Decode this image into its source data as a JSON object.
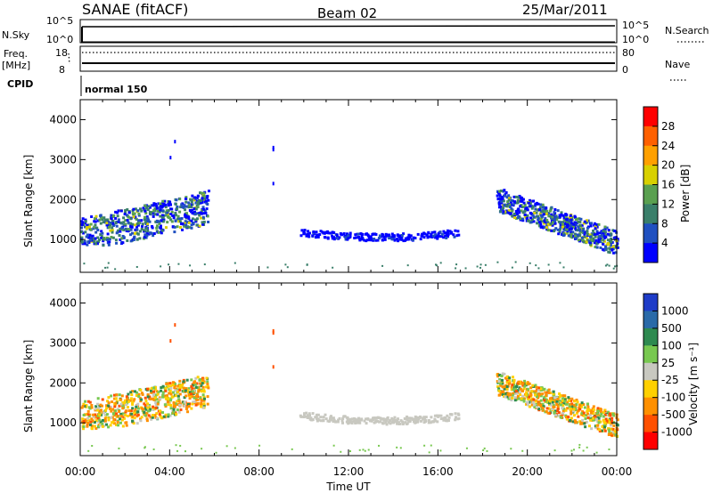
{
  "header": {
    "station": "SANAE (fitACF)",
    "beam": "Beam 02",
    "date": "25/Mar/2011"
  },
  "strip_panels": {
    "nsky_label": "N.Sky",
    "nsky_ticks": [
      "10^5",
      "10^0"
    ],
    "nsearch_label": "N.Search",
    "nsearch_ticks": [
      "10^5",
      "10^0"
    ],
    "freq_label_line1": "Freq.",
    "freq_label_line2": "[MHz]",
    "freq_ticks": [
      "18",
      "8"
    ],
    "nave_label": "Nave",
    "nave_ticks": [
      "80",
      "0"
    ],
    "cpid_label": "CPID",
    "cpid_value": "normal 150"
  },
  "x_axis": {
    "label": "Time UT",
    "ticks": [
      "00:00",
      "04:00",
      "08:00",
      "12:00",
      "16:00",
      "20:00",
      "00:00"
    ],
    "range_hours": [
      0,
      24
    ]
  },
  "colors": {
    "power_scale": [
      "#0000ff",
      "#2050c0",
      "#3a7f6a",
      "#5aa050",
      "#d8d000",
      "#ffa000",
      "#ff6000",
      "#ff0000"
    ],
    "velocity_scale": [
      "#1e3cc8",
      "#2a6aa8",
      "#2e8a50",
      "#78c850",
      "#c8c8c0",
      "#ffd000",
      "#ff9000",
      "#ff5000",
      "#ff0000"
    ]
  },
  "chart_data": [
    {
      "type": "heatmap",
      "name": "power",
      "xlabel": "",
      "ylabel": "Slant Range [km]",
      "xlim": [
        0,
        24
      ],
      "ylim": [
        180,
        4500
      ],
      "yticks": [
        "4000",
        "3000",
        "2000",
        "1000"
      ],
      "yticks_values": [
        4000,
        3000,
        2000,
        1000
      ],
      "colorbar_label": "Power [dB]",
      "colorbar_ticks": [
        "28",
        "24",
        "20",
        "16",
        "12",
        "8",
        "4"
      ],
      "regions": [
        {
          "t_start": 0.0,
          "t_end": 5.7,
          "r_low": 850,
          "r_high": 2250,
          "level": "mixed-green-blue"
        },
        {
          "t_start": 9.8,
          "t_end": 16.9,
          "r_low": 950,
          "r_high": 1250,
          "level": "blue"
        },
        {
          "t_start": 18.6,
          "t_end": 24.0,
          "r_low": 650,
          "r_high": 2250,
          "level": "mixed-blue-green"
        }
      ]
    },
    {
      "type": "heatmap",
      "name": "velocity",
      "xlabel": "Time UT",
      "ylabel": "Slant Range [km]",
      "xlim": [
        0,
        24
      ],
      "ylim": [
        180,
        4500
      ],
      "yticks": [
        "4000",
        "3000",
        "2000",
        "1000"
      ],
      "yticks_values": [
        4000,
        3000,
        2000,
        1000
      ],
      "colorbar_label": "Velocity [m s⁻¹]",
      "colorbar_ticks": [
        "1000",
        "500",
        "100",
        "25",
        "-25",
        "-100",
        "-500",
        "-1000"
      ],
      "regions": [
        {
          "t_start": 0.0,
          "t_end": 5.7,
          "r_low": 850,
          "r_high": 2250,
          "level": "orange-green mix"
        },
        {
          "t_start": 9.8,
          "t_end": 16.9,
          "r_low": 950,
          "r_high": 1250,
          "level": "grey (|v|<25)"
        },
        {
          "t_start": 18.6,
          "t_end": 24.0,
          "r_low": 650,
          "r_high": 2250,
          "level": "orange-green mix"
        }
      ]
    }
  ]
}
